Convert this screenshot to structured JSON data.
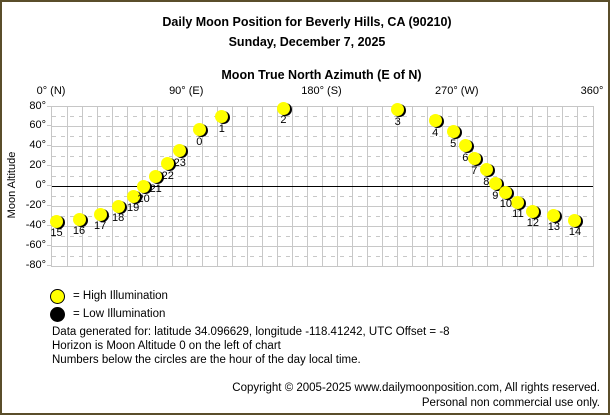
{
  "window": {
    "background": "#ffffff",
    "border_color": "#5a4e2a"
  },
  "header": {
    "title": "Daily Moon Position for Beverly Hills, CA (90210)",
    "date": "Sunday, December 7, 2025"
  },
  "chart_data": {
    "type": "scatter",
    "title": "Moon True North Azimuth (E of N)",
    "xlabel": "Moon True North Azimuth (E of N)",
    "ylabel": "Moon Altitude",
    "xlim": [
      0,
      360
    ],
    "ylim": [
      -80,
      80
    ],
    "x_minor_step": 10,
    "y_minor_step": 10,
    "grid": "on",
    "x_ticks": [
      {
        "value": 0,
        "label": "0° (N)"
      },
      {
        "value": 90,
        "label": "90° (E)"
      },
      {
        "value": 180,
        "label": "180° (S)"
      },
      {
        "value": 270,
        "label": "270° (W)"
      },
      {
        "value": 360,
        "label": "360°"
      }
    ],
    "y_ticks": [
      {
        "value": 80,
        "label": "80°"
      },
      {
        "value": 60,
        "label": "60°"
      },
      {
        "value": 40,
        "label": "40°"
      },
      {
        "value": 20,
        "label": "20°"
      },
      {
        "value": 0,
        "label": "0°"
      },
      {
        "value": -20,
        "label": "-20°"
      },
      {
        "value": -40,
        "label": "-40°"
      },
      {
        "value": -60,
        "label": "-60°"
      },
      {
        "value": -80,
        "label": "-80°"
      }
    ],
    "horizon_altitude": 0,
    "point_colors": {
      "high": "#ffff00",
      "low": "#000000"
    },
    "points": [
      {
        "hour": 0,
        "azimuth": 98,
        "altitude": 57,
        "illumination": "high"
      },
      {
        "hour": 1,
        "azimuth": 113,
        "altitude": 70,
        "illumination": "high"
      },
      {
        "hour": 2,
        "azimuth": 154,
        "altitude": 79,
        "illumination": "high"
      },
      {
        "hour": 3,
        "azimuth": 230,
        "altitude": 77,
        "illumination": "high"
      },
      {
        "hour": 4,
        "azimuth": 255,
        "altitude": 66,
        "illumination": "high"
      },
      {
        "hour": 5,
        "azimuth": 267,
        "altitude": 55,
        "illumination": "high"
      },
      {
        "hour": 6,
        "azimuth": 275,
        "altitude": 41,
        "illumination": "high"
      },
      {
        "hour": 7,
        "azimuth": 281,
        "altitude": 28,
        "illumination": "high"
      },
      {
        "hour": 8,
        "azimuth": 289,
        "altitude": 17,
        "illumination": "high"
      },
      {
        "hour": 9,
        "azimuth": 295,
        "altitude": 3,
        "illumination": "high"
      },
      {
        "hour": 10,
        "azimuth": 302,
        "altitude": -6,
        "illumination": "high"
      },
      {
        "hour": 11,
        "azimuth": 310,
        "altitude": -16,
        "illumination": "high"
      },
      {
        "hour": 12,
        "azimuth": 320,
        "altitude": -25,
        "illumination": "high"
      },
      {
        "hour": 13,
        "azimuth": 334,
        "altitude": -29,
        "illumination": "high"
      },
      {
        "hour": 14,
        "azimuth": 348,
        "altitude": -34,
        "illumination": "high"
      },
      {
        "hour": 15,
        "azimuth": 3,
        "altitude": -35,
        "illumination": "high"
      },
      {
        "hour": 16,
        "azimuth": 18,
        "altitude": -33,
        "illumination": "high"
      },
      {
        "hour": 17,
        "azimuth": 32,
        "altitude": -28,
        "illumination": "high"
      },
      {
        "hour": 18,
        "azimuth": 44,
        "altitude": -20,
        "illumination": "high"
      },
      {
        "hour": 19,
        "azimuth": 54,
        "altitude": -10,
        "illumination": "high"
      },
      {
        "hour": 20,
        "azimuth": 61,
        "altitude": 0,
        "illumination": "high"
      },
      {
        "hour": 21,
        "azimuth": 69,
        "altitude": 10,
        "illumination": "high"
      },
      {
        "hour": 22,
        "azimuth": 77,
        "altitude": 23,
        "illumination": "high"
      },
      {
        "hour": 23,
        "azimuth": 85,
        "altitude": 36,
        "illumination": "high"
      }
    ]
  },
  "legend": [
    {
      "swatch": "high",
      "label": "= High Illumination"
    },
    {
      "swatch": "low",
      "label": "= Low Illumination"
    }
  ],
  "notes": [
    "Data generated for: latitude 34.096629, longitude -118.41242, UTC Offset = -8",
    "Horizon is Moon Altitude 0 on the left of chart",
    "Numbers below the circles are the hour of the day local time."
  ],
  "footer": {
    "line1": "Copyright © 2005-2025 www.dailymoonposition.com, All rights reserved.",
    "line2": "Personal non commercial use only."
  }
}
